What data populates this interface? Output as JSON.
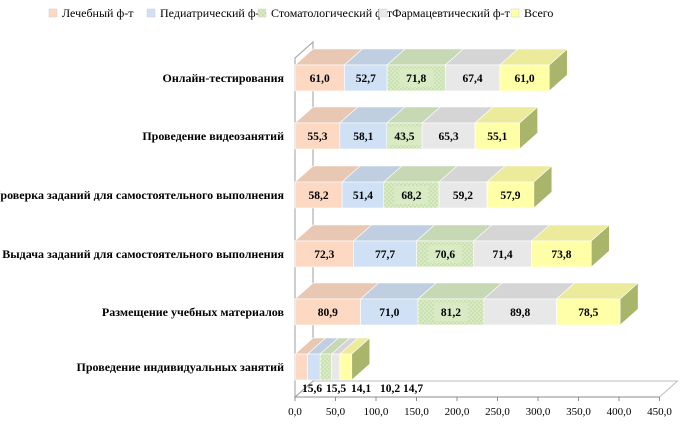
{
  "chart_data": {
    "type": "bar",
    "orientation": "horizontal",
    "stacked": true,
    "style": "3d",
    "categories": [
      "Онлайн-тестирования",
      "Проведение видеозанятий",
      "Проверка заданий для самостоятельного выполнения",
      "Выдача заданий для самостоятельного выполнения",
      "Размещение учебных материалов",
      "Проведение индивидуальных занятий"
    ],
    "series": [
      {
        "name": "Лечебный ф-т",
        "color": "#fdd9c3",
        "values": [
          61.0,
          55.3,
          58.2,
          72.3,
          80.9,
          15.6
        ]
      },
      {
        "name": "Педиатрический ф-т",
        "color": "#d0e1f5",
        "values": [
          52.7,
          58.1,
          51.4,
          77.7,
          71.0,
          15.5
        ]
      },
      {
        "name": "Стоматологический ф-т",
        "color": "#d8ebc4",
        "pattern": "dotted",
        "values": [
          71.8,
          43.5,
          68.2,
          70.6,
          81.2,
          14.1
        ]
      },
      {
        "name": "Фармацевтический ф-т",
        "color": "#e8e8e8",
        "values": [
          67.4,
          65.3,
          59.2,
          71.4,
          89.8,
          10.2
        ]
      },
      {
        "name": "Всего",
        "color": "#ffffa8",
        "values": [
          61.0,
          55.1,
          57.9,
          73.8,
          78.5,
          14.7
        ]
      }
    ],
    "value_labels": [
      [
        "61,0",
        "52,7",
        "71,8",
        "67,4",
        "61,0"
      ],
      [
        "55,3",
        "58,1",
        "43,5",
        "65,3",
        "55,1"
      ],
      [
        "58,2",
        "51,4",
        "68,2",
        "59,2",
        "57,9"
      ],
      [
        "72,3",
        "77,7",
        "70,6",
        "71,4",
        "73,8"
      ],
      [
        "80,9",
        "71,0",
        "81,2",
        "89,8",
        "78,5"
      ],
      [
        "15,6",
        "15,5",
        "14,1",
        "10,2",
        "14,7"
      ]
    ],
    "xlim": [
      0,
      450
    ],
    "xticks": [
      0,
      50,
      100,
      150,
      200,
      250,
      300,
      350,
      400,
      450
    ],
    "xtick_labels": [
      "0,0",
      "50,0",
      "100,0",
      "150,0",
      "200,0",
      "250,0",
      "300,0",
      "350,0",
      "400,0",
      "450,0"
    ],
    "title": "",
    "xlabel": "",
    "ylabel": "",
    "grid": false,
    "legend_position": "top"
  }
}
